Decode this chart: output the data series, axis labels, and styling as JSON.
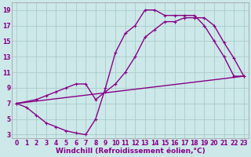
{
  "xlabel": "Windchill (Refroidissement éolien,°C)",
  "background_color": "#cce8e8",
  "grid_color": "#aacccc",
  "line_color": "#880088",
  "xlim": [
    -0.5,
    23.5
  ],
  "ylim": [
    2.5,
    20
  ],
  "xticks": [
    0,
    1,
    2,
    3,
    4,
    5,
    6,
    7,
    8,
    9,
    10,
    11,
    12,
    13,
    14,
    15,
    16,
    17,
    18,
    19,
    20,
    21,
    22,
    23
  ],
  "yticks": [
    3,
    5,
    7,
    9,
    11,
    13,
    15,
    17,
    19
  ],
  "line1_x": [
    0,
    1,
    2,
    3,
    4,
    5,
    6,
    7,
    8,
    9,
    10,
    11,
    12,
    13,
    14,
    15,
    16,
    17,
    18,
    19,
    20,
    21,
    22,
    23
  ],
  "line1_y": [
    7,
    6.5,
    5.5,
    4.5,
    4.0,
    3.5,
    3.2,
    3.0,
    5.0,
    9.0,
    13.5,
    16.0,
    17.0,
    19.0,
    19.0,
    18.3,
    18.3,
    18.3,
    18.3,
    17.0,
    15.0,
    13.0,
    10.5,
    10.5
  ],
  "line2_x": [
    0,
    2,
    3,
    4,
    5,
    6,
    7,
    8,
    9,
    10,
    11,
    12,
    13,
    14,
    15,
    16,
    17,
    18,
    19,
    20,
    21,
    22,
    23
  ],
  "line2_y": [
    7,
    7.5,
    8.0,
    8.5,
    9.0,
    9.5,
    9.5,
    7.5,
    8.5,
    9.5,
    11.0,
    13.0,
    15.5,
    16.5,
    17.5,
    17.5,
    18.0,
    18.0,
    18.0,
    17.0,
    14.8,
    12.8,
    10.5
  ],
  "line3_x": [
    0,
    23
  ],
  "line3_y": [
    7,
    10.5
  ],
  "marker_size": 2.5,
  "linewidth": 1.0,
  "tick_fontsize": 5.5,
  "xlabel_fontsize": 6.5
}
